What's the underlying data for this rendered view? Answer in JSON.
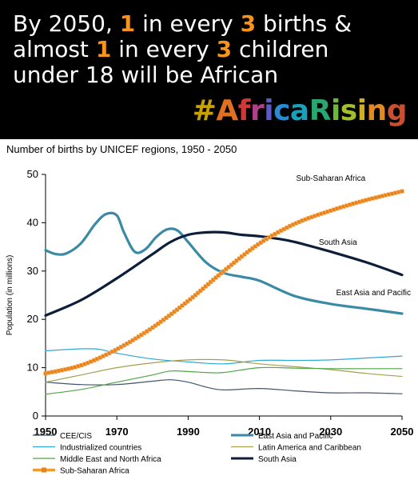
{
  "banner": {
    "line1": [
      {
        "t": "By 2050, ",
        "hl": false
      },
      {
        "t": "1",
        "hl": true
      },
      {
        "t": " in every ",
        "hl": false
      },
      {
        "t": "3",
        "hl": true
      },
      {
        "t": " births &",
        "hl": false
      }
    ],
    "line2": [
      {
        "t": "almost ",
        "hl": false
      },
      {
        "t": "1",
        "hl": true
      },
      {
        "t": " in every ",
        "hl": false
      },
      {
        "t": "3",
        "hl": true
      },
      {
        "t": " children",
        "hl": false
      }
    ],
    "line3": [
      {
        "t": "under 18 will be African",
        "hl": false
      }
    ],
    "highlight_color": "#f7941d",
    "hashtag": "#AfricaRising",
    "hashtag_colors": [
      "#c8a200",
      "#e07020",
      "#d03838",
      "#b04088",
      "#5a5ac8",
      "#2a8ad0",
      "#1aa0b8",
      "#28a870",
      "#6cb83a",
      "#a0c030",
      "#d0b020",
      "#e08a20",
      "#c85030"
    ]
  },
  "chart_data": {
    "type": "line",
    "title": "Number of births by UNICEF regions, 1950 - 2050",
    "ylabel": "Population (in millions)",
    "xlabel": "",
    "xlim": [
      1950,
      2050
    ],
    "ylim": [
      0,
      50
    ],
    "xticks": [
      "1950",
      "1970",
      "1990",
      "2010",
      "2030",
      "2050"
    ],
    "yticks": [
      "0",
      "10",
      "20",
      "30",
      "40",
      "50"
    ],
    "grid": false,
    "legend_position": "bottom",
    "series": [
      {
        "name": "CEE/CIS",
        "color": "#44546a",
        "width": 1.2,
        "x": [
          1950,
          1960,
          1970,
          1980,
          1985,
          1990,
          1995,
          2000,
          2010,
          2020,
          2030,
          2040,
          2050
        ],
        "y": [
          7,
          6.5,
          6.5,
          7.2,
          7.5,
          7,
          6,
          5.4,
          5.7,
          5.2,
          4.8,
          4.8,
          4.6
        ]
      },
      {
        "name": "East Asia and Pacific",
        "color": "#3a8aa5",
        "width": 3.2,
        "label": "East Asia and Pacific",
        "x": [
          1950,
          1953,
          1956,
          1960,
          1964,
          1967,
          1970,
          1972,
          1975,
          1978,
          1981,
          1984,
          1987,
          1990,
          1995,
          2000,
          2005,
          2010,
          2020,
          2030,
          2040,
          2050
        ],
        "y": [
          34.3,
          33.5,
          33.7,
          35.8,
          39.8,
          41.8,
          41.5,
          38,
          34,
          34.5,
          37,
          38.6,
          38.4,
          36,
          31.8,
          29.6,
          28.8,
          28,
          24.8,
          23.2,
          22.2,
          21.2
        ]
      },
      {
        "name": "Industrialized countries",
        "color": "#2ea8d8",
        "width": 1.2,
        "x": [
          1950,
          1960,
          1965,
          1970,
          1980,
          1990,
          2000,
          2010,
          2020,
          2030,
          2040,
          2050
        ],
        "y": [
          13.5,
          13.9,
          13.8,
          13,
          11.8,
          11.2,
          10.8,
          11.5,
          11.5,
          11.6,
          12,
          12.4
        ]
      },
      {
        "name": "Latin America and Caribbean",
        "color": "#a3a050",
        "width": 1.2,
        "x": [
          1950,
          1960,
          1970,
          1980,
          1990,
          2000,
          2010,
          2020,
          2030,
          2040,
          2050
        ],
        "y": [
          7,
          8.5,
          10,
          11,
          11.6,
          11.6,
          10.8,
          10.2,
          9.6,
          8.8,
          8.2
        ]
      },
      {
        "name": "Middle East and North Africa",
        "color": "#4ea646",
        "width": 1.2,
        "x": [
          1950,
          1960,
          1970,
          1980,
          1985,
          1990,
          1995,
          2000,
          2010,
          2020,
          2030,
          2040,
          2050
        ],
        "y": [
          4.5,
          5.5,
          7,
          8.5,
          9.3,
          9.2,
          9,
          9,
          10,
          9.9,
          9.8,
          9.8,
          9.8
        ]
      },
      {
        "name": "South Asia",
        "color": "#0d1e3b",
        "width": 3.2,
        "label": "South Asia",
        "x": [
          1950,
          1960,
          1970,
          1980,
          1985,
          1990,
          1995,
          2000,
          2005,
          2010,
          2015,
          2020,
          2030,
          2040,
          2050
        ],
        "y": [
          20.8,
          24,
          28.5,
          33.5,
          36,
          37.5,
          38,
          38,
          37.5,
          37.2,
          36.7,
          36,
          34,
          31.8,
          29.2
        ]
      },
      {
        "name": "Sub-Saharan Africa",
        "color": "#f39a2e",
        "width": 4,
        "marker": "square",
        "label": "Sub-Saharan Africa",
        "x": [
          1950,
          1960,
          1970,
          1980,
          1990,
          2000,
          2010,
          2020,
          2030,
          2040,
          2050
        ],
        "y": [
          8.8,
          10.5,
          13.8,
          18.3,
          23.8,
          30,
          35.7,
          39.8,
          42.5,
          44.7,
          46.5
        ]
      }
    ]
  }
}
